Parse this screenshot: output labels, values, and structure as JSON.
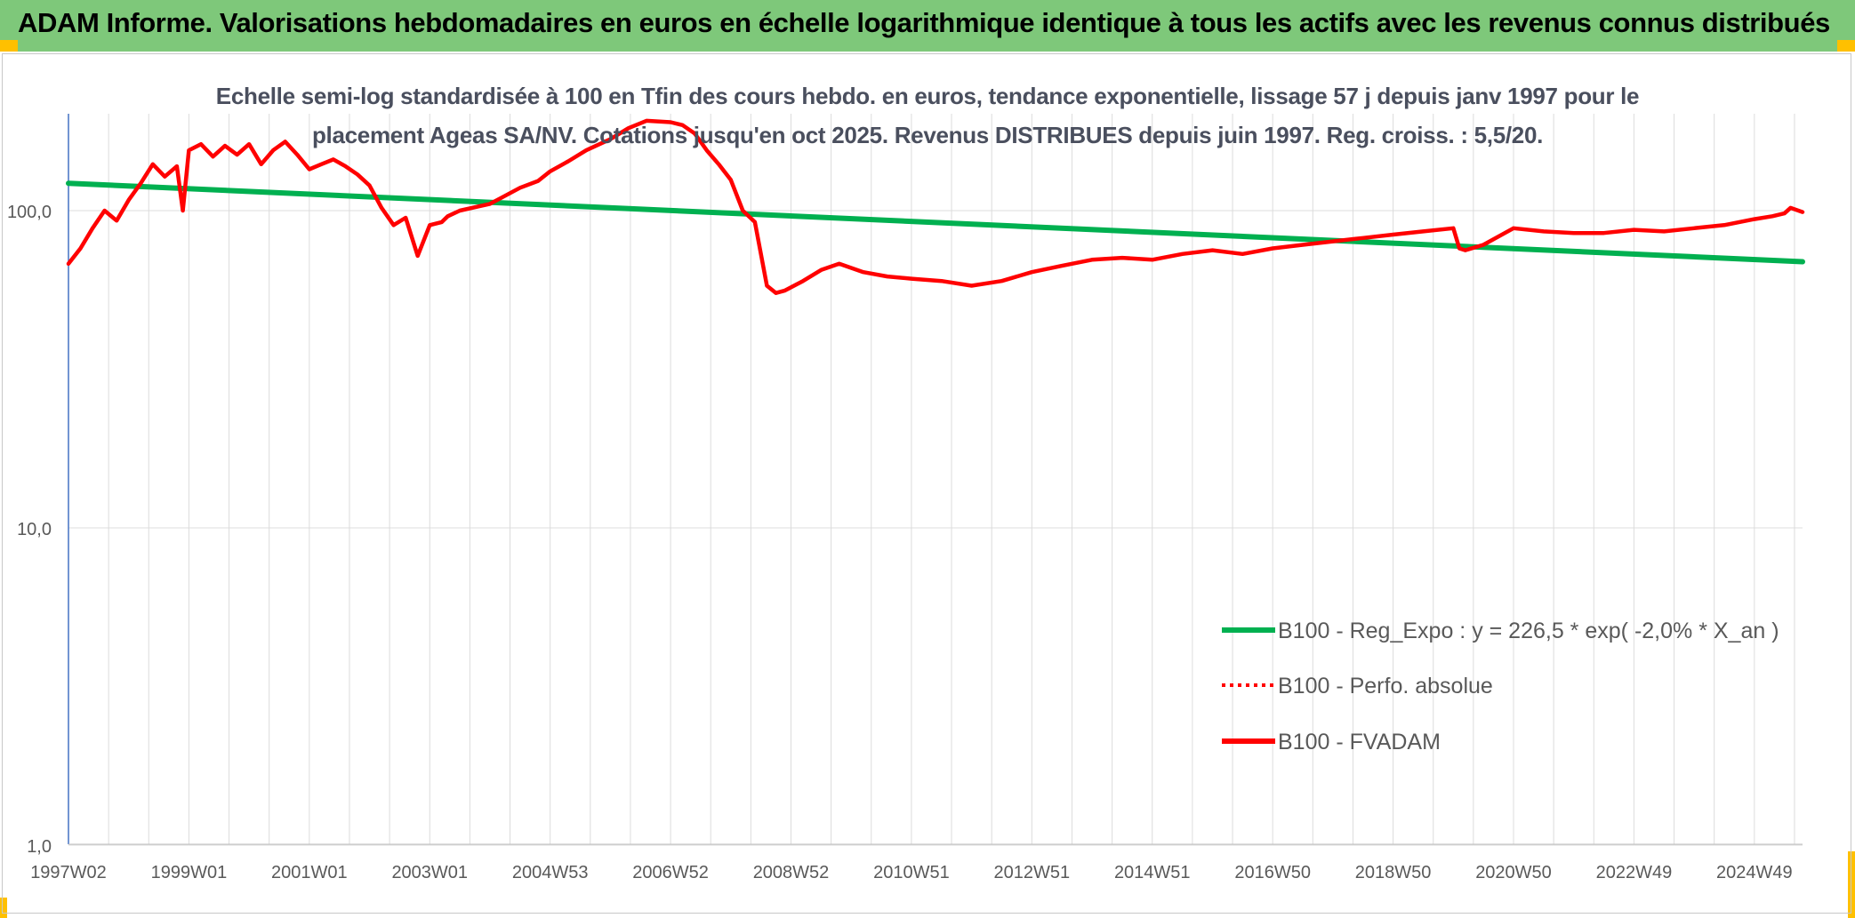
{
  "banner": {
    "title": "ADAM Informe. Valorisations hebdomadaires en euros en échelle logarithmique identique à tous les actifs avec les revenus connus distribués",
    "color": "#7ec87a",
    "accent": "#ffc000"
  },
  "chart_data": {
    "type": "line",
    "title_line1": "Echelle semi-log standardisée à 100 en Tfin des cours hebdo. en euros, tendance exponentielle, lissage 57 j depuis janv 1997 pour le",
    "title_line2": "placement Ageas SA/NV. Cotations jusqu'en oct 2025. Revenus DISTRIBUES depuis juin 1997. Reg. croiss. : 5,5/20.",
    "y_scale": "log",
    "ylim": [
      1,
      200
    ],
    "y_ticks": [
      {
        "value": 1,
        "label": "1,0"
      },
      {
        "value": 10,
        "label": "10,0"
      },
      {
        "value": 100,
        "label": "100,0"
      }
    ],
    "xlim": [
      1997.0,
      2025.8
    ],
    "x_ticks": [
      {
        "year": 1997.0,
        "label": "1997W02"
      },
      {
        "year": 1999.0,
        "label": "1999W01"
      },
      {
        "year": 2001.0,
        "label": "2001W01"
      },
      {
        "year": 2003.0,
        "label": "2003W01"
      },
      {
        "year": 2005.0,
        "label": "2004W53"
      },
      {
        "year": 2007.0,
        "label": "2006W52"
      },
      {
        "year": 2009.0,
        "label": "2008W52"
      },
      {
        "year": 2011.0,
        "label": "2010W51"
      },
      {
        "year": 2013.0,
        "label": "2012W51"
      },
      {
        "year": 2015.0,
        "label": "2014W51"
      },
      {
        "year": 2017.0,
        "label": "2016W50"
      },
      {
        "year": 2019.0,
        "label": "2018W50"
      },
      {
        "year": 2021.0,
        "label": "2020W50"
      },
      {
        "year": 2023.0,
        "label": "2022W49"
      },
      {
        "year": 2025.0,
        "label": "2024W49"
      }
    ],
    "grid": true,
    "legend_position": "bottom-right",
    "series": [
      {
        "name": "B100 - Reg_Expo : y = 226,5 * exp( -2,0% *  X_an )",
        "color": "#00b050",
        "style": "solid",
        "x": [
          1997.0,
          2025.8
        ],
        "values": [
          122,
          69
        ]
      },
      {
        "name": "B100 - Perfo. absolue",
        "color": "#ff0000",
        "style": "dotted",
        "x": [],
        "values": []
      },
      {
        "name": "B100 - FVADAM",
        "color": "#ff0000",
        "style": "solid",
        "x": [
          1997.0,
          1997.2,
          1997.4,
          1997.6,
          1997.8,
          1998.0,
          1998.2,
          1998.4,
          1998.6,
          1998.8,
          1998.9,
          1999.0,
          1999.2,
          1999.4,
          1999.6,
          1999.8,
          2000.0,
          2000.2,
          2000.4,
          2000.6,
          2000.8,
          2001.0,
          2001.2,
          2001.4,
          2001.6,
          2001.8,
          2002.0,
          2002.2,
          2002.4,
          2002.6,
          2002.8,
          2003.0,
          2003.2,
          2003.3,
          2003.5,
          2003.8,
          2004.0,
          2004.2,
          2004.5,
          2004.8,
          2005.0,
          2005.3,
          2005.6,
          2006.0,
          2006.3,
          2006.6,
          2007.0,
          2007.2,
          2007.4,
          2007.6,
          2007.8,
          2008.0,
          2008.2,
          2008.4,
          2008.6,
          2008.75,
          2008.9,
          2009.2,
          2009.5,
          2009.8,
          2010.2,
          2010.6,
          2011.0,
          2011.5,
          2012.0,
          2012.5,
          2013.0,
          2013.5,
          2014.0,
          2014.5,
          2015.0,
          2015.5,
          2016.0,
          2016.5,
          2017.0,
          2017.5,
          2018.0,
          2018.5,
          2019.0,
          2019.5,
          2020.0,
          2020.1,
          2020.2,
          2020.5,
          2021.0,
          2021.5,
          2022.0,
          2022.5,
          2023.0,
          2023.5,
          2024.0,
          2024.5,
          2025.0,
          2025.3,
          2025.5,
          2025.6,
          2025.8
        ],
        "values": [
          68,
          76,
          88,
          100,
          93,
          108,
          122,
          140,
          128,
          138,
          100,
          155,
          162,
          148,
          160,
          150,
          162,
          140,
          155,
          165,
          150,
          135,
          140,
          145,
          138,
          130,
          120,
          102,
          90,
          95,
          72,
          90,
          92,
          96,
          100,
          103,
          105,
          110,
          118,
          124,
          133,
          143,
          155,
          168,
          182,
          192,
          190,
          186,
          175,
          155,
          140,
          125,
          100,
          92,
          58,
          55,
          56,
          60,
          65,
          68,
          64,
          62,
          61,
          60,
          58,
          60,
          64,
          67,
          70,
          71,
          70,
          73,
          75,
          73,
          76,
          78,
          80,
          82,
          84,
          86,
          88,
          76,
          75,
          78,
          88,
          86,
          85,
          85,
          87,
          86,
          88,
          90,
          94,
          96,
          98,
          102,
          99
        ]
      }
    ]
  }
}
